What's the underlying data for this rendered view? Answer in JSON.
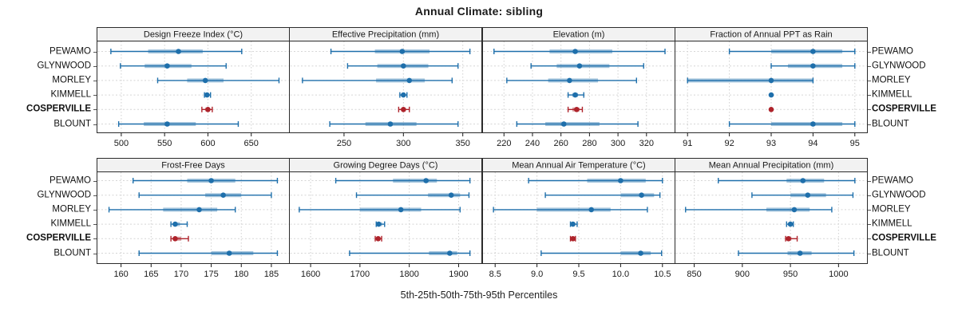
{
  "title": "Annual Climate: sibling",
  "caption": "5th-25th-50th-75th-95th Percentiles",
  "colors": {
    "series": "#1E6FAB",
    "series_band": "rgba(30,111,171,0.40)",
    "highlight": "#AE232B",
    "highlight_band": "rgba(174,35,43,0.45)",
    "strip_bg": "#F2F2F2",
    "border": "#2B2B2B",
    "grid": "#D0D0D0",
    "guide": "#D5D5D5",
    "tick": "#1A1A1A"
  },
  "chart_data": {
    "type": "dotplot-percentiles",
    "percentile_labels": [
      "5th",
      "25th",
      "50th",
      "75th",
      "95th"
    ],
    "rows": [
      "PEWAMO",
      "GLYNWOOD",
      "MORLEY",
      "KIMMELL",
      "COSPERVILLE",
      "BLOUNT"
    ],
    "highlight_row": "COSPERVILLE",
    "legend": "none",
    "grid": "dashed",
    "panels": [
      {
        "title": "Design Freeze Index (°C)",
        "domain": [
          472,
          694
        ],
        "ticks": [
          500,
          550,
          600,
          650
        ],
        "tick_labels": [
          "500",
          "550",
          "600",
          "650"
        ],
        "series": [
          [
            488,
            531,
            566,
            594,
            639
          ],
          [
            499,
            527,
            553,
            581,
            621
          ],
          [
            542,
            576,
            597,
            618,
            682
          ],
          [
            596,
            598,
            599,
            601,
            603
          ],
          [
            593,
            597,
            600,
            602,
            605
          ],
          [
            497,
            526,
            553,
            586,
            635
          ]
        ]
      },
      {
        "title": "Effective Precipitation (mm)",
        "domain": [
          204,
          366
        ],
        "ticks": [
          250,
          300,
          350
        ],
        "tick_labels": [
          "250",
          "300",
          "350"
        ],
        "series": [
          [
            239,
            276,
            299,
            322,
            356
          ],
          [
            253,
            278,
            300,
            321,
            346
          ],
          [
            215,
            277,
            305,
            318,
            341
          ],
          [
            297,
            299,
            300,
            301,
            303
          ],
          [
            296,
            299,
            300,
            302,
            305
          ],
          [
            238,
            268,
            289,
            311,
            346
          ]
        ]
      },
      {
        "title": "Elevation (m)",
        "domain": [
          205,
          340
        ],
        "ticks": [
          220,
          240,
          260,
          280,
          300,
          320
        ],
        "tick_labels": [
          "220",
          "240",
          "260",
          "280",
          "300",
          "320"
        ],
        "series": [
          [
            213,
            252,
            270,
            296,
            333
          ],
          [
            239,
            257,
            273,
            294,
            318
          ],
          [
            222,
            251,
            266,
            286,
            313
          ],
          [
            265,
            268,
            270,
            272,
            276
          ],
          [
            265,
            268,
            271,
            273,
            275
          ],
          [
            229,
            249,
            262,
            287,
            314
          ]
        ]
      },
      {
        "title": "Fraction of Annual PPT as Rain",
        "domain": [
          90.7,
          95.3
        ],
        "ticks": [
          91,
          92,
          93,
          94,
          95
        ],
        "tick_labels": [
          "91",
          "92",
          "93",
          "94",
          "95"
        ],
        "series": [
          [
            92,
            93,
            94,
            94.7,
            95
          ],
          [
            93,
            93.4,
            94,
            94.7,
            95
          ],
          [
            91,
            91,
            93,
            94,
            94
          ],
          [
            93,
            93,
            93,
            93,
            93
          ],
          [
            93,
            93,
            93,
            93,
            93
          ],
          [
            92,
            93,
            94,
            94.7,
            95
          ]
        ]
      },
      {
        "title": "Frost-Free Days",
        "domain": [
          156,
          188
        ],
        "ticks": [
          160,
          165,
          170,
          175,
          180,
          185
        ],
        "tick_labels": [
          "160",
          "165",
          "170",
          "175",
          "180",
          "185"
        ],
        "series": [
          [
            162,
            171,
            175,
            179,
            186
          ],
          [
            163,
            174,
            177,
            180,
            185
          ],
          [
            158,
            167,
            173,
            176,
            179
          ],
          [
            168.3,
            168.7,
            169,
            169.8,
            171
          ],
          [
            168.3,
            168.7,
            169,
            170,
            171.2
          ],
          [
            163,
            175,
            178,
            182,
            186
          ]
        ]
      },
      {
        "title": "Growing Degree Days (°C)",
        "domain": [
          1557,
          1947
        ],
        "ticks": [
          1600,
          1700,
          1800,
          1900
        ],
        "tick_labels": [
          "1600",
          "1700",
          "1800",
          "1900"
        ],
        "series": [
          [
            1651,
            1767,
            1834,
            1856,
            1923
          ],
          [
            1693,
            1838,
            1885,
            1903,
            1921
          ],
          [
            1577,
            1700,
            1783,
            1824,
            1903
          ],
          [
            1733,
            1736,
            1738,
            1745,
            1750
          ],
          [
            1731,
            1734,
            1737,
            1740,
            1744
          ],
          [
            1679,
            1840,
            1882,
            1897,
            1923
          ]
        ]
      },
      {
        "title": "Mean Annual Air Temperature (°C)",
        "domain": [
          8.35,
          10.65
        ],
        "ticks": [
          8.5,
          9.0,
          9.5,
          10.0,
          10.5
        ],
        "tick_labels": [
          "8.5",
          "9.0",
          "9.5",
          "10.0",
          "10.5"
        ],
        "series": [
          [
            8.9,
            9.6,
            10.0,
            10.3,
            10.5
          ],
          [
            9.1,
            10.0,
            10.25,
            10.4,
            10.47
          ],
          [
            8.48,
            9.0,
            9.65,
            9.88,
            10.32
          ],
          [
            9.4,
            9.42,
            9.43,
            9.45,
            9.48
          ],
          [
            9.4,
            9.42,
            9.43,
            9.44,
            9.46
          ],
          [
            9.05,
            10.0,
            10.24,
            10.36,
            10.49
          ]
        ]
      },
      {
        "title": "Mean Annual Precipitation (mm)",
        "domain": [
          830,
          1030
        ],
        "ticks": [
          850,
          900,
          950,
          1000
        ],
        "tick_labels": [
          "850",
          "900",
          "950",
          "1000"
        ],
        "series": [
          [
            875,
            946,
            963,
            985,
            1017
          ],
          [
            910,
            950,
            968,
            987,
            1015
          ],
          [
            841,
            925,
            954,
            970,
            993
          ],
          [
            946,
            948,
            950,
            951,
            953
          ],
          [
            945,
            947,
            948,
            951,
            957
          ],
          [
            896,
            947,
            960,
            972,
            1016
          ]
        ]
      }
    ]
  }
}
